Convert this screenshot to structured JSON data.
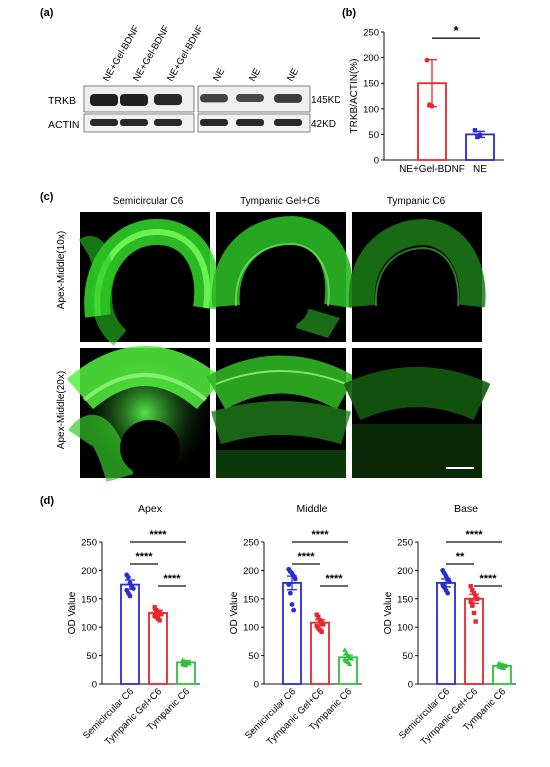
{
  "panel_a": {
    "label": "(a)",
    "lanes": [
      "NE+Gel-BDNF",
      "NE+Gel-BDNF",
      "NE+Gel-BDNF",
      "NE",
      "NE",
      "NE"
    ],
    "rows": [
      "TRKB",
      "ACTIN"
    ],
    "sizes": [
      "145KD",
      "42KD"
    ]
  },
  "panel_b": {
    "label": "(b)",
    "sig": "*",
    "chart_data": {
      "type": "bar",
      "categories": [
        "NE+Gel-BDNF",
        "NE"
      ],
      "values": [
        150,
        50
      ],
      "errors": [
        46,
        6
      ],
      "points": [
        [
          195,
          108,
          105
        ],
        [
          58,
          45,
          49
        ]
      ],
      "ylabel": "TRKB/ACTIN(%)",
      "ylim": [
        0,
        250
      ],
      "yticks": [
        0,
        50,
        100,
        150,
        200,
        250
      ],
      "colors": [
        "#e8262b",
        "#2a2ad6"
      ]
    }
  },
  "panel_c": {
    "label": "(c)",
    "columns": [
      "Semicircular C6",
      "Tympanic Gel+C6",
      "Tympanic C6"
    ],
    "rows": [
      "Apex-Middle(10x)",
      "Apex-Middle(20x)"
    ]
  },
  "panel_d": {
    "label": "(d)",
    "chart_data": [
      {
        "type": "bar",
        "title": "Apex",
        "ylabel": "OD Value",
        "ylim": [
          0,
          250
        ],
        "yticks": [
          0,
          50,
          100,
          150,
          200,
          250
        ],
        "categories": [
          "Semicircular C6",
          "Tympanic Gel+C6",
          "Tympanic C6"
        ],
        "values": [
          175,
          125,
          38
        ],
        "errors": [
          8,
          5,
          3
        ],
        "points": [
          [
            192,
            188,
            178,
            172,
            168,
            165,
            160,
            155
          ],
          [
            135,
            130,
            127,
            125,
            123,
            120,
            118,
            115,
            112
          ],
          [
            42,
            40,
            38,
            37,
            36,
            35,
            34,
            33
          ]
        ],
        "significance": [
          "****",
          "****",
          "****"
        ]
      },
      {
        "type": "bar",
        "title": "Middle",
        "ylabel": "OD Value",
        "ylim": [
          0,
          250
        ],
        "yticks": [
          0,
          50,
          100,
          150,
          200,
          250
        ],
        "categories": [
          "Semicircular C6",
          "Tympanic Gel+C6",
          "Tympanic C6"
        ],
        "values": [
          178,
          108,
          47
        ],
        "errors": [
          12,
          5,
          4
        ],
        "points": [
          [
            202,
            198,
            195,
            190,
            185,
            175,
            160,
            140,
            130
          ],
          [
            122,
            118,
            112,
            108,
            105,
            102,
            98,
            95,
            92
          ],
          [
            60,
            55,
            50,
            47,
            45,
            43,
            40,
            38,
            35
          ]
        ],
        "significance": [
          "****",
          "****",
          "****"
        ]
      },
      {
        "type": "bar",
        "title": "Base",
        "ylabel": "OD Value",
        "ylim": [
          0,
          250
        ],
        "yticks": [
          0,
          50,
          100,
          150,
          200,
          250
        ],
        "categories": [
          "Semicircular C6",
          "Tympanic Gel+C6",
          "Tympanic C6"
        ],
        "values": [
          178,
          150,
          32
        ],
        "errors": [
          7,
          8,
          2
        ],
        "points": [
          [
            200,
            195,
            190,
            185,
            180,
            175,
            170,
            165,
            160
          ],
          [
            172,
            165,
            160,
            155,
            150,
            145,
            138,
            125,
            110
          ],
          [
            36,
            35,
            34,
            33,
            32,
            31,
            30,
            29,
            28
          ]
        ],
        "significance": [
          "****",
          "**",
          "****"
        ]
      }
    ]
  },
  "colors": {
    "blue": "#2a2ad6",
    "red": "#e8262b",
    "green": "#2fbf3a",
    "micro": "#2ee62e"
  }
}
